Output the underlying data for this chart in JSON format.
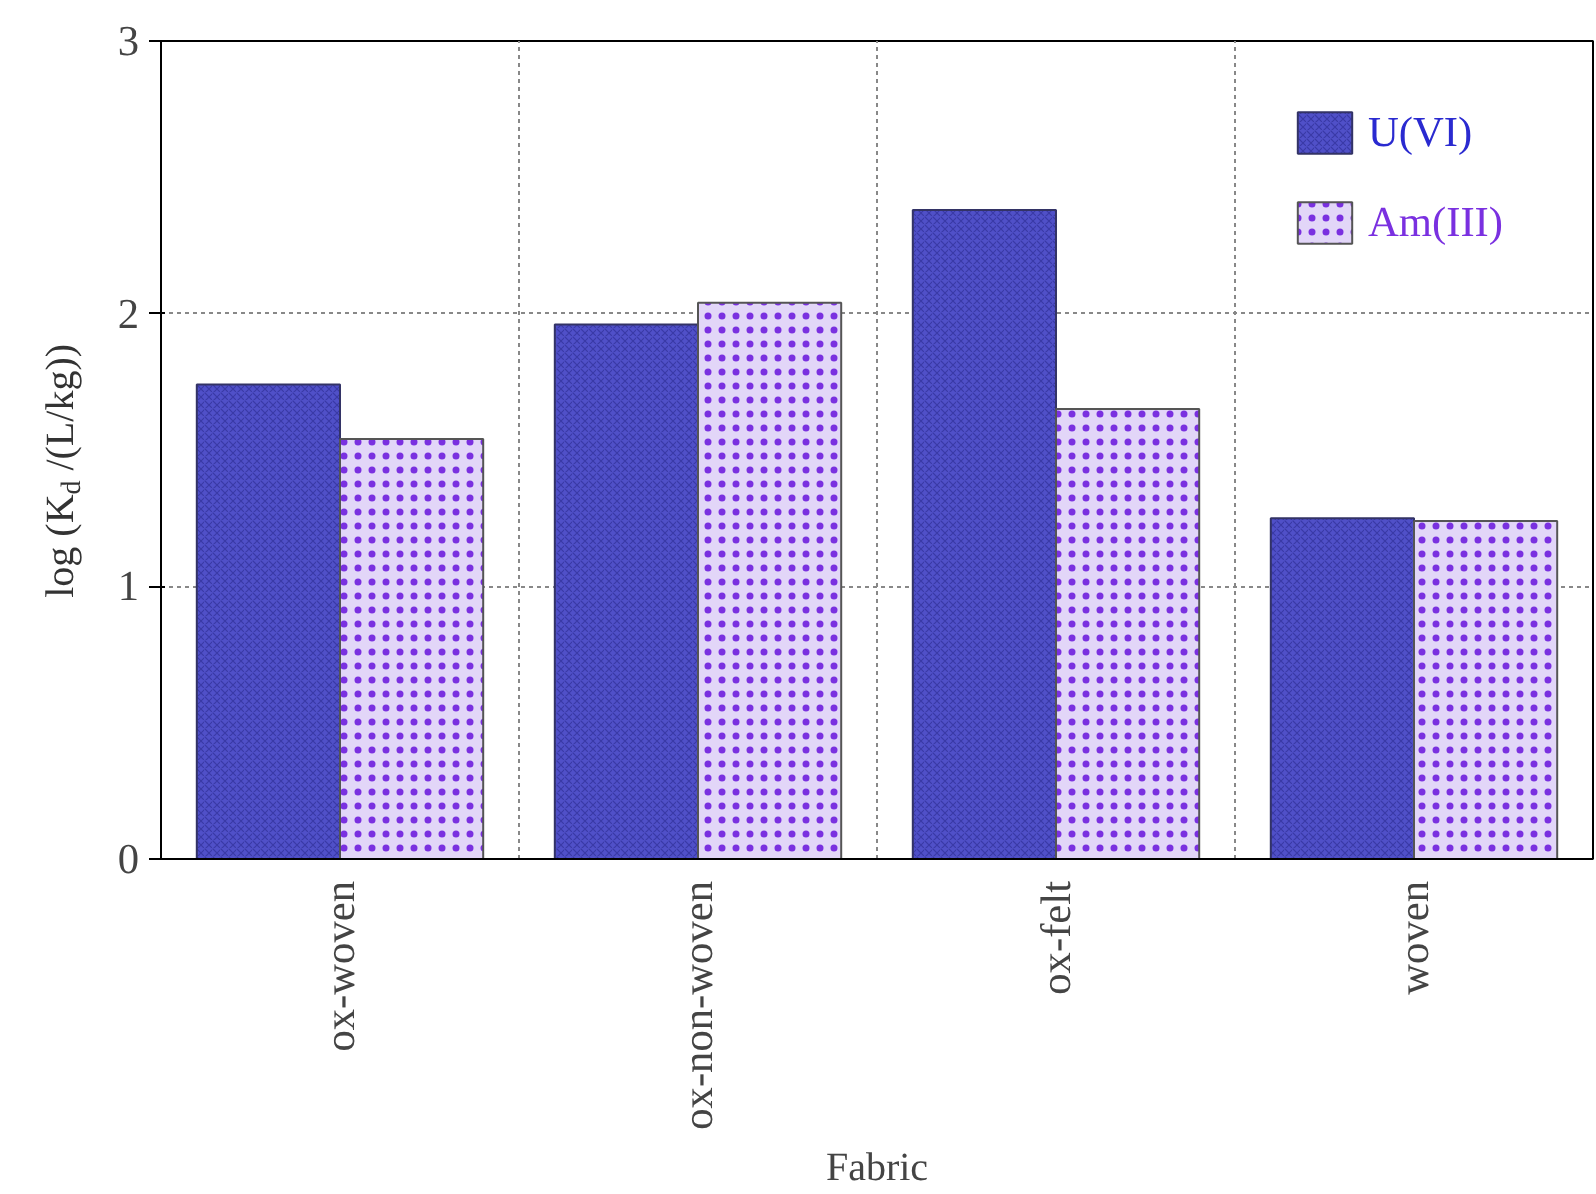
{
  "chart_data": {
    "type": "bar",
    "xlabel": "Fabric",
    "ylabel": "log (K$_{d}$ /(L/kg))",
    "categories": [
      "ox-woven",
      "ox-non-woven",
      "ox-felt",
      "woven"
    ],
    "series": [
      {
        "name": "U(VI)",
        "color": "#5050c8",
        "values": [
          1.74,
          1.96,
          2.38,
          1.25
        ]
      },
      {
        "name": "Am(III)",
        "color": "#e2d6f8",
        "values": [
          1.54,
          2.04,
          1.65,
          1.24
        ]
      }
    ],
    "ylim": [
      0,
      3
    ],
    "yticks": [
      0,
      1,
      2,
      3
    ],
    "grid": true,
    "legend": "top right"
  }
}
